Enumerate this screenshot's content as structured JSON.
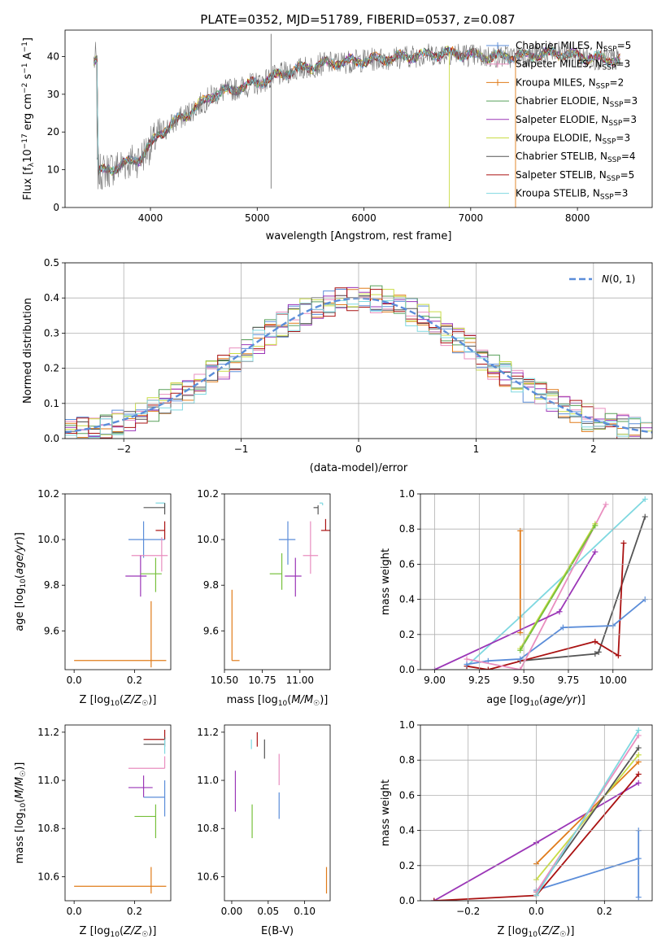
{
  "title": "PLATE=0352, MJD=51789, FIBERID=0537, z=0.087",
  "colors": {
    "Chabrier MILES": "#5b8dd9",
    "Salpeter MILES": "#e98ebf",
    "Kroupa MILES": "#e07b1a",
    "Chabrier ELODIE": "#58a05a",
    "Salpeter ELODIE": "#9b36b7",
    "Kroupa ELODIE": "#c9dc45",
    "Chabrier STELIB": "#555555",
    "Salpeter STELIB": "#aa1212",
    "Kroupa STELIB": "#7fd8e0",
    "green": "#77c03c"
  },
  "chart_data": [
    {
      "id": "spectrum",
      "type": "line",
      "xlabel": "wavelength [Angstrom, rest frame]",
      "ylabel": "Flux [f_λ 10^-17 erg cm^-2 s^-1 A^-1]",
      "xlim": [
        3200,
        8700
      ],
      "ylim": [
        0,
        47
      ],
      "xticks": [
        "4000",
        "5000",
        "6000",
        "7000",
        "8000"
      ],
      "yticks": [
        "0",
        "10",
        "20",
        "30",
        "40"
      ],
      "grid": false,
      "legend_position": "right",
      "legend": [
        {
          "name": "Chabrier MILES",
          "nssp": "N_SSP=5"
        },
        {
          "name": "Salpeter MILES",
          "nssp": "N_SSP=3"
        },
        {
          "name": "Kroupa MILES",
          "nssp": "N_SSP=2"
        },
        {
          "name": "Chabrier ELODIE",
          "nssp": "N_SSP=3"
        },
        {
          "name": "Salpeter ELODIE",
          "nssp": "N_SSP=3"
        },
        {
          "name": "Kroupa ELODIE",
          "nssp": "N_SSP=3"
        },
        {
          "name": "Chabrier STELIB",
          "nssp": "N_SSP=4"
        },
        {
          "name": "Salpeter STELIB",
          "nssp": "N_SSP=5"
        },
        {
          "name": "Kroupa STELIB",
          "nssp": "N_SSP=3"
        }
      ],
      "continuum_nodes": [
        [
          3500,
          9
        ],
        [
          3700,
          11
        ],
        [
          3900,
          13
        ],
        [
          4100,
          20
        ],
        [
          4400,
          26
        ],
        [
          4600,
          30
        ],
        [
          5000,
          33
        ],
        [
          5300,
          36
        ],
        [
          5600,
          38
        ],
        [
          6000,
          39
        ],
        [
          6400,
          40
        ],
        [
          6800,
          41
        ],
        [
          7100,
          40
        ],
        [
          7400,
          40
        ],
        [
          7800,
          41
        ],
        [
          8000,
          40
        ],
        [
          8400,
          39
        ]
      ],
      "spikes": [
        [
          5130,
          5
        ],
        [
          5130,
          46
        ],
        [
          6800,
          0
        ],
        [
          7420,
          0
        ]
      ]
    },
    {
      "id": "residuals",
      "type": "histogram",
      "xlabel": "(data-model)/error",
      "ylabel": "Normed distribution",
      "xlim": [
        -2.5,
        2.5
      ],
      "ylim": [
        0,
        0.5
      ],
      "xticks": [
        "−2",
        "−1",
        "0",
        "1",
        "2"
      ],
      "yticks": [
        "0.0",
        "0.1",
        "0.2",
        "0.3",
        "0.4",
        "0.5"
      ],
      "grid": true,
      "legend_position": "top-right",
      "legend_label": "N(0,1)",
      "bin_width": 0.1
    },
    {
      "id": "z-age",
      "type": "errorbar",
      "xlabel": "Z [log10(Z/Z☉)]",
      "ylabel": "age  [log10(age/yr)]",
      "xlim": [
        -0.03,
        0.32
      ],
      "ylim": [
        9.43,
        10.2
      ],
      "xticks": [
        "0.0",
        "0.2"
      ],
      "yticks": [
        "9.6",
        "9.8",
        "10.0",
        "10.2"
      ],
      "points": [
        {
          "model": "Kroupa MILES",
          "x": 0.255,
          "xerr": [
            0.255,
            0.05
          ],
          "y": 9.47,
          "yerr": [
            0.03,
            0.26
          ]
        },
        {
          "model": "Kroupa STELIB",
          "x": 0.3,
          "xerr": [
            0.03,
            0.0
          ],
          "y": 10.16,
          "yerr": [
            0.02,
            0.0
          ]
        },
        {
          "model": "Chabrier STELIB",
          "x": 0.3,
          "xerr": [
            0.07,
            0.0
          ],
          "y": 10.14,
          "yerr": [
            0.03,
            0.02
          ]
        },
        {
          "model": "Salpeter STELIB",
          "x": 0.3,
          "xerr": [
            0.03,
            0.0
          ],
          "y": 10.04,
          "yerr": [
            0.04,
            0.04
          ]
        },
        {
          "model": "Chabrier MILES",
          "x": 0.23,
          "xerr": [
            0.05,
            0.07
          ],
          "y": 10.0,
          "yerr": [
            0.08,
            0.08
          ]
        },
        {
          "model": "Salpeter MILES",
          "x": 0.29,
          "xerr": [
            0.1,
            0.02
          ],
          "y": 9.93,
          "yerr": [
            0.07,
            0.08
          ]
        },
        {
          "model": "Salpeter ELODIE",
          "x": 0.22,
          "xerr": [
            0.05,
            0.02
          ],
          "y": 9.84,
          "yerr": [
            0.09,
            0.09
          ]
        },
        {
          "model": "green",
          "x": 0.27,
          "xerr": [
            0.05,
            0.02
          ],
          "y": 9.85,
          "yerr": [
            0.08,
            0.07
          ]
        }
      ]
    },
    {
      "id": "mass-age",
      "type": "errorbar",
      "xlabel": "mass [log10(M/M☉)]",
      "ylabel": "",
      "xlim": [
        10.5,
        11.2
      ],
      "ylim": [
        9.43,
        10.2
      ],
      "xticks": [
        "10.50",
        "10.75",
        "11.00"
      ],
      "yticks": [
        "9.6",
        "9.8",
        "10.0",
        "10.2"
      ],
      "points": [
        {
          "model": "Kroupa MILES",
          "x": 10.55,
          "xerr": [
            0.0,
            0.05
          ],
          "y": 9.47,
          "yerr": [
            0.0,
            0.31
          ]
        },
        {
          "model": "Kroupa STELIB",
          "x": 11.15,
          "xerr": [
            0.02,
            0.0
          ],
          "y": 10.16,
          "yerr": [
            0.01,
            0.0
          ]
        },
        {
          "model": "Chabrier STELIB",
          "x": 11.12,
          "xerr": [
            0.03,
            0.0
          ],
          "y": 10.14,
          "yerr": [
            0.03,
            0.01
          ]
        },
        {
          "model": "Salpeter STELIB",
          "x": 11.17,
          "xerr": [
            0.03,
            0.03
          ],
          "y": 10.04,
          "yerr": [
            0.0,
            0.05
          ]
        },
        {
          "model": "Chabrier MILES",
          "x": 10.92,
          "xerr": [
            0.06,
            0.05
          ],
          "y": 10.0,
          "yerr": [
            0.11,
            0.08
          ]
        },
        {
          "model": "Salpeter MILES",
          "x": 11.07,
          "xerr": [
            0.05,
            0.05
          ],
          "y": 9.93,
          "yerr": [
            0.08,
            0.15
          ]
        },
        {
          "model": "Salpeter ELODIE",
          "x": 10.97,
          "xerr": [
            0.07,
            0.04
          ],
          "y": 9.84,
          "yerr": [
            0.09,
            0.08
          ]
        },
        {
          "model": "green",
          "x": 10.88,
          "xerr": [
            0.08,
            0.0
          ],
          "y": 9.85,
          "yerr": [
            0.07,
            0.09
          ]
        }
      ]
    },
    {
      "id": "age-weight",
      "type": "line",
      "xlabel": "age  [log10(age/yr)]",
      "ylabel": "mass weight",
      "xlim": [
        8.92,
        10.22
      ],
      "ylim": [
        0,
        1
      ],
      "xticks": [
        "9.00",
        "9.25",
        "9.50",
        "9.75",
        "10.00"
      ],
      "yticks": [
        "0.0",
        "0.2",
        "0.4",
        "0.6",
        "0.8",
        "1.0"
      ],
      "grid": true,
      "series": [
        {
          "model": "Kroupa STELIB",
          "x": [
            9.18,
            9.48,
            10.18
          ],
          "y": [
            0.02,
            0.3,
            0.97
          ]
        },
        {
          "model": "Chabrier STELIB",
          "x": [
            9.48,
            9.9,
            9.92,
            10.18
          ],
          "y": [
            0.05,
            0.09,
            0.1,
            0.87
          ]
        },
        {
          "model": "Salpeter STELIB",
          "x": [
            9.18,
            9.3,
            9.9,
            10.03,
            10.06
          ],
          "y": [
            0.02,
            0.0,
            0.16,
            0.08,
            0.72
          ]
        },
        {
          "model": "Chabrier MILES",
          "x": [
            9.18,
            9.3,
            9.48,
            9.72,
            10.0,
            10.18
          ],
          "y": [
            0.03,
            0.05,
            0.06,
            0.24,
            0.25,
            0.4
          ]
        },
        {
          "model": "Salpeter MILES",
          "x": [
            9.18,
            9.48,
            9.96
          ],
          "y": [
            0.06,
            0.0,
            0.94
          ]
        },
        {
          "model": "Kroupa MILES",
          "x": [
            9.48,
            9.48
          ],
          "y": [
            0.21,
            0.79
          ]
        },
        {
          "model": "Salpeter ELODIE",
          "x": [
            9.0,
            9.7,
            9.9
          ],
          "y": [
            0.0,
            0.33,
            0.67
          ]
        },
        {
          "model": "Kroupa ELODIE",
          "x": [
            9.48,
            9.9
          ],
          "y": [
            0.12,
            0.83
          ]
        },
        {
          "model": "green",
          "x": [
            9.48,
            9.9
          ],
          "y": [
            0.11,
            0.82
          ]
        }
      ]
    },
    {
      "id": "z-mass",
      "type": "errorbar",
      "xlabel": "Z [log10(Z/Z☉)]",
      "ylabel": "mass [log10(M/M☉)]",
      "xlim": [
        -0.03,
        0.32
      ],
      "ylim": [
        10.5,
        11.23
      ],
      "xticks": [
        "0.0",
        "0.2"
      ],
      "yticks": [
        "10.6",
        "10.8",
        "11.0",
        "11.2"
      ],
      "points": [
        {
          "model": "Kroupa MILES",
          "x": 0.255,
          "xerr": [
            0.255,
            0.05
          ],
          "y": 10.56,
          "yerr": [
            0.03,
            0.08
          ]
        },
        {
          "model": "Salpeter STELIB",
          "x": 0.3,
          "xerr": [
            0.07,
            0.0
          ],
          "y": 11.17,
          "yerr": [
            0.0,
            0.04
          ]
        },
        {
          "model": "Chabrier STELIB",
          "x": 0.3,
          "xerr": [
            0.07,
            0.0
          ],
          "y": 11.15,
          "yerr": [
            0.01,
            0.03
          ]
        },
        {
          "model": "Kroupa STELIB",
          "x": 0.3,
          "xerr": [
            0.0,
            0.0
          ],
          "y": 11.14,
          "yerr": [
            0.03,
            0.03
          ]
        },
        {
          "model": "Salpeter MILES",
          "x": 0.3,
          "xerr": [
            0.12,
            0.0
          ],
          "y": 11.05,
          "yerr": [
            0.0,
            0.05
          ]
        },
        {
          "model": "Salpeter ELODIE",
          "x": 0.23,
          "xerr": [
            0.05,
            0.03
          ],
          "y": 10.97,
          "yerr": [
            0.04,
            0.05
          ]
        },
        {
          "model": "Chabrier MILES",
          "x": 0.3,
          "xerr": [
            0.07,
            0.0
          ],
          "y": 10.93,
          "yerr": [
            0.08,
            0.07
          ]
        },
        {
          "model": "green",
          "x": 0.27,
          "xerr": [
            0.07,
            0.0
          ],
          "y": 10.85,
          "yerr": [
            0.09,
            0.05
          ]
        }
      ]
    },
    {
      "id": "ebv-mass",
      "type": "errorbar",
      "xlabel": "E(B-V)",
      "ylabel": "",
      "xlim": [
        -0.01,
        0.135
      ],
      "ylim": [
        10.5,
        11.23
      ],
      "xticks": [
        "0.00",
        "0.05",
        "0.10"
      ],
      "yticks": [
        "10.6",
        "10.8",
        "11.0",
        "11.2"
      ],
      "points": [
        {
          "model": "Kroupa MILES",
          "x": 0.13,
          "xerr": [
            0,
            0
          ],
          "y": 10.58,
          "yerr": [
            0.05,
            0.06
          ]
        },
        {
          "model": "Salpeter ELODIE",
          "x": 0.005,
          "xerr": [
            0,
            0
          ],
          "y": 10.95,
          "yerr": [
            0.08,
            0.09
          ]
        },
        {
          "model": "Kroupa STELIB",
          "x": 0.027,
          "xerr": [
            0,
            0
          ],
          "y": 11.15,
          "yerr": [
            0.02,
            0.02
          ]
        },
        {
          "model": "Salpeter STELIB",
          "x": 0.035,
          "xerr": [
            0,
            0
          ],
          "y": 11.17,
          "yerr": [
            0.03,
            0.03
          ]
        },
        {
          "model": "Chabrier STELIB",
          "x": 0.045,
          "xerr": [
            0,
            0
          ],
          "y": 11.13,
          "yerr": [
            0.04,
            0.04
          ]
        },
        {
          "model": "Salpeter MILES",
          "x": 0.065,
          "xerr": [
            0,
            0
          ],
          "y": 11.05,
          "yerr": [
            0.07,
            0.06
          ]
        },
        {
          "model": "Chabrier MILES",
          "x": 0.065,
          "xerr": [
            0,
            0
          ],
          "y": 10.9,
          "yerr": [
            0.06,
            0.05
          ]
        },
        {
          "model": "green",
          "x": 0.028,
          "xerr": [
            0,
            0
          ],
          "y": 10.83,
          "yerr": [
            0.07,
            0.07
          ]
        }
      ]
    },
    {
      "id": "z-weight",
      "type": "line",
      "xlabel": "Z [log10(Z/Z☉)]",
      "ylabel": "mass weight",
      "xlim": [
        -0.34,
        0.34
      ],
      "ylim": [
        0,
        1
      ],
      "xticks": [
        "−0.2",
        "0.0",
        "0.2"
      ],
      "yticks": [
        "0.0",
        "0.2",
        "0.4",
        "0.6",
        "0.8",
        "1.0"
      ],
      "grid": true,
      "series": [
        {
          "model": "Chabrier MILES",
          "x": [
            0.0,
            0.3
          ],
          "y": [
            0.06,
            0.24
          ]
        },
        {
          "model": "Salpeter ELODIE",
          "x": [
            0.0,
            0.3
          ],
          "y": [
            0.33,
            0.67
          ]
        },
        {
          "model": "Salpeter ELODIE",
          "x": [
            -0.3,
            0.0
          ],
          "y": [
            0.0,
            0.33
          ]
        },
        {
          "model": "Salpeter STELIB",
          "x": [
            -0.3,
            0.0,
            0.3
          ],
          "y": [
            0.0,
            0.03,
            0.72
          ]
        },
        {
          "model": "Kroupa MILES",
          "x": [
            0.0,
            0.3
          ],
          "y": [
            0.21,
            0.79
          ]
        },
        {
          "model": "Kroupa ELODIE",
          "x": [
            0.0,
            0.3
          ],
          "y": [
            0.12,
            0.83
          ]
        },
        {
          "model": "Chabrier STELIB",
          "x": [
            0.0,
            0.3
          ],
          "y": [
            0.05,
            0.87
          ]
        },
        {
          "model": "Salpeter MILES",
          "x": [
            0.0,
            0.3
          ],
          "y": [
            0.05,
            0.94
          ]
        },
        {
          "model": "Kroupa STELIB",
          "x": [
            0.0,
            0.3
          ],
          "y": [
            0.03,
            0.97
          ]
        },
        {
          "model": "Chabrier MILES",
          "x": [
            0.3,
            0.3
          ],
          "y": [
            0.02,
            0.4
          ]
        }
      ]
    }
  ]
}
